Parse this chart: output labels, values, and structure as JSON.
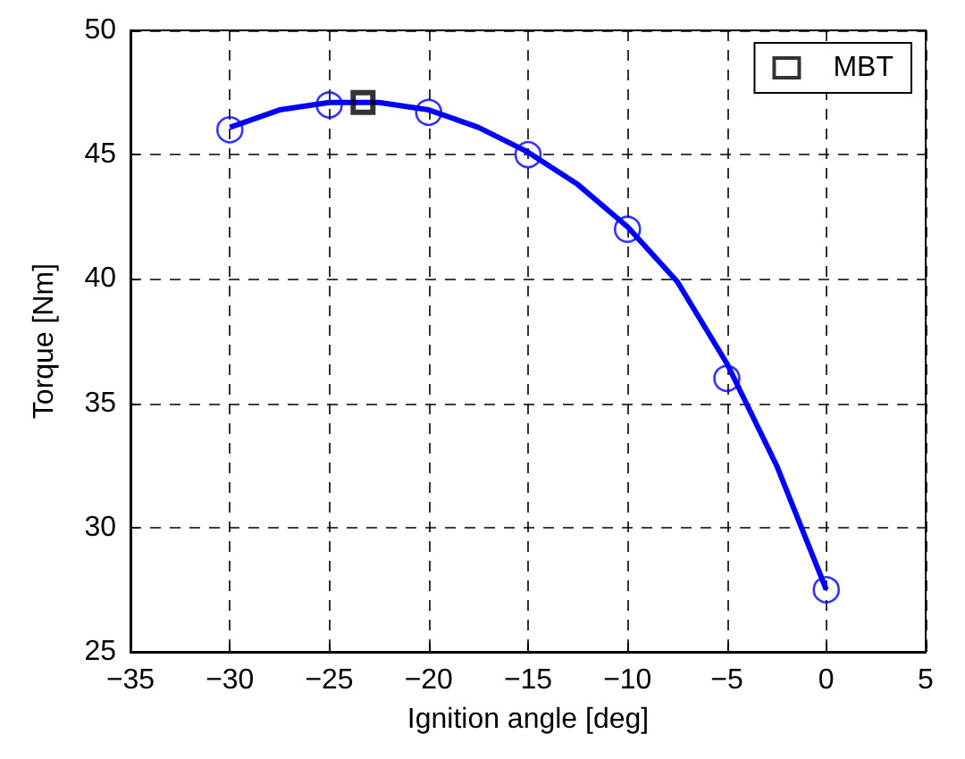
{
  "chart_data": {
    "type": "line",
    "xlabel": "Ignition angle [deg]",
    "ylabel": "Torque [Nm]",
    "xlim": [
      -35,
      5
    ],
    "xticks": [
      -35,
      -30,
      -25,
      -20,
      -15,
      -10,
      -5,
      0,
      5
    ],
    "ylim": [
      25,
      50
    ],
    "yticks": [
      25,
      30,
      35,
      40,
      45,
      50
    ],
    "grid": true,
    "legend": "top right",
    "series": [
      {
        "color": "#0000ff",
        "marker": "none",
        "line_style": "solid",
        "x": [
          -30,
          -27.5,
          -25,
          -22.5,
          -20,
          -17.5,
          -15,
          -12.5,
          -10,
          -7.5,
          -5,
          -2.5,
          0
        ],
        "values": [
          46.1,
          46.8,
          47.1,
          47.1,
          46.8,
          46.1,
          45.1,
          43.8,
          42.1,
          39.9,
          36.6,
          32.5,
          27.5
        ]
      },
      {
        "type": "scatter",
        "color": "#0000ff",
        "marker": "circle",
        "x": [
          -30,
          -25,
          -20,
          -15,
          -10,
          -5,
          0
        ],
        "values": [
          46,
          47,
          46.7,
          45,
          42,
          36,
          27.5
        ]
      },
      {
        "type": "scatter",
        "name": "MBT",
        "color": "#000000",
        "marker": "square",
        "x": [
          -23.3
        ],
        "values": [
          47.1
        ]
      }
    ]
  }
}
